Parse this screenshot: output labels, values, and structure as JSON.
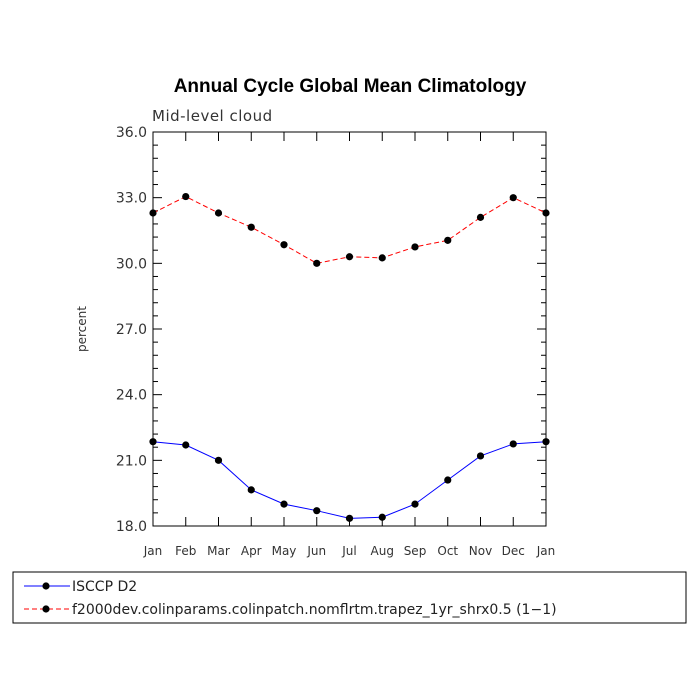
{
  "chart_data": {
    "type": "line",
    "title": "Annual Cycle Global Mean Climatology",
    "subtitle": "Mid-level cloud",
    "xlabel": "",
    "ylabel": "percent",
    "categories": [
      "Jan",
      "Feb",
      "Mar",
      "Apr",
      "May",
      "Jun",
      "Jul",
      "Aug",
      "Sep",
      "Oct",
      "Nov",
      "Dec",
      "Jan"
    ],
    "ylim": [
      18.0,
      36.0
    ],
    "yticks": [
      "18.0",
      "21.0",
      "24.0",
      "27.0",
      "30.0",
      "33.0",
      "36.0"
    ],
    "yticks_values": [
      18,
      21,
      24,
      27,
      30,
      33,
      36
    ],
    "series": [
      {
        "name": "ISCCP D2",
        "color": "#0000ff",
        "line_style": "solid",
        "marker": "circle",
        "values": [
          21.85,
          21.7,
          21.0,
          19.65,
          19.0,
          18.7,
          18.35,
          18.4,
          19.0,
          20.1,
          21.2,
          21.75,
          21.85
        ]
      },
      {
        "name": "f2000dev.colinparams.colinpatch.nomflrtm.trapez_1yr_shrx0.5 (1−1)",
        "color": "#ff0000",
        "line_style": "dashed",
        "marker": "circle",
        "values": [
          32.3,
          33.05,
          32.3,
          31.65,
          30.85,
          30.0,
          30.3,
          30.25,
          30.75,
          31.05,
          32.1,
          33.0,
          32.3
        ]
      }
    ],
    "legend_position": "bottom-left",
    "grid": false
  }
}
